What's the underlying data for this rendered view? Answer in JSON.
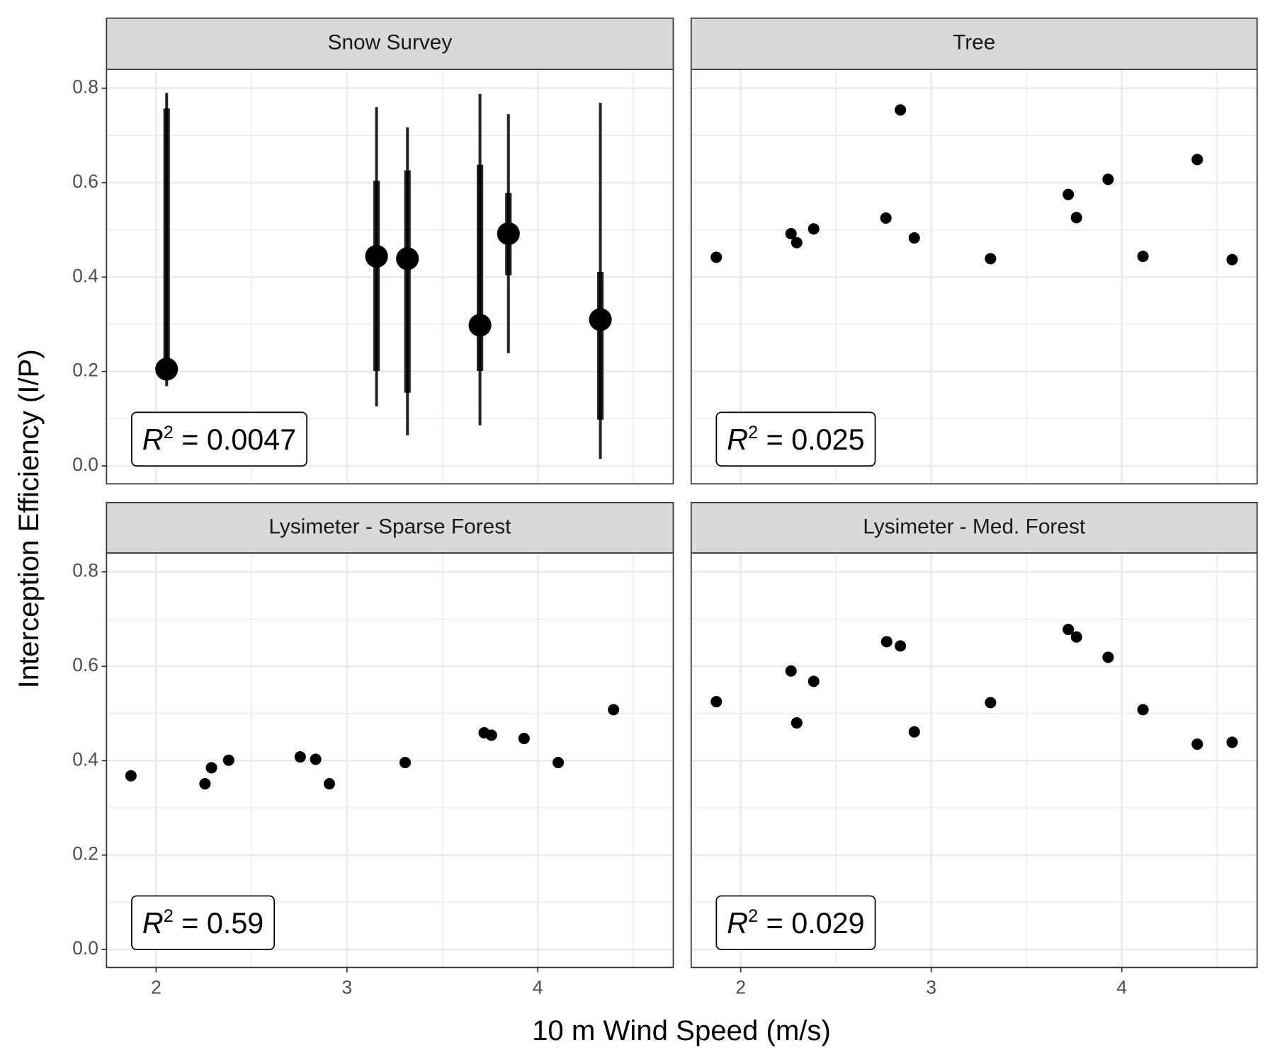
{
  "xlabel": "10 m Wind Speed (m/s)",
  "ylabel": "Interception Efficiency (I/P)",
  "chart_data": [
    {
      "type": "pointrange",
      "title": "Snow Survey",
      "color": "#000000",
      "x": [
        2.055,
        3.155,
        3.317,
        3.697,
        3.846,
        4.328
      ],
      "values": [
        0.205,
        0.444,
        0.439,
        0.298,
        0.492,
        0.31
      ],
      "inner_low": [
        0.19,
        0.201,
        0.155,
        0.201,
        0.404,
        0.098
      ],
      "inner_high": [
        0.757,
        0.604,
        0.626,
        0.638,
        0.578,
        0.411
      ],
      "outer_low": [
        0.169,
        0.126,
        0.065,
        0.086,
        0.239,
        0.015
      ],
      "outer_high": [
        0.79,
        0.76,
        0.717,
        0.788,
        0.745,
        0.769
      ],
      "xlim": [
        1.74,
        4.71
      ],
      "ylim": [
        -0.038,
        0.84
      ],
      "xticks": [
        2,
        3,
        4
      ],
      "yticks": [
        {
          "value": 0,
          "label": "0.0"
        },
        0.2,
        0.4,
        0.6,
        0.8
      ],
      "minor_xticks": [
        2.5,
        3.5,
        4.5
      ],
      "minor_yticks": [
        0.1,
        0.3,
        0.5,
        0.7
      ],
      "grid": true,
      "annotation": [
        "R",
        "2",
        " = 0.0047"
      ]
    },
    {
      "type": "scatter",
      "title": "Tree",
      "color": "#000000",
      "x": [
        1.872,
        2.264,
        2.294,
        2.383,
        2.762,
        2.838,
        2.911,
        3.311,
        3.719,
        3.762,
        3.928,
        4.111,
        4.396,
        4.579
      ],
      "values": [
        0.442,
        0.492,
        0.473,
        0.502,
        0.525,
        0.754,
        0.483,
        0.439,
        0.575,
        0.526,
        0.607,
        0.444,
        0.649,
        0.437
      ],
      "xlim": [
        1.74,
        4.71
      ],
      "ylim": [
        -0.038,
        0.84
      ],
      "xticks": [
        2,
        3,
        4
      ],
      "yticks": [
        {
          "value": 0,
          "label": "0.0"
        },
        0.2,
        0.4,
        0.6,
        0.8
      ],
      "minor_xticks": [
        2.5,
        3.5,
        4.5
      ],
      "minor_yticks": [
        0.1,
        0.3,
        0.5,
        0.7
      ],
      "grid": true,
      "annotation": [
        "R",
        "2",
        " = 0.025"
      ]
    },
    {
      "type": "scatter",
      "title": "Lysimeter - Sparse Forest",
      "color": "#000000",
      "x": [
        1.868,
        2.256,
        2.29,
        2.38,
        2.755,
        2.836,
        2.908,
        3.305,
        3.719,
        3.757,
        3.928,
        4.107,
        4.397
      ],
      "values": [
        0.368,
        0.351,
        0.385,
        0.401,
        0.408,
        0.403,
        0.351,
        0.396,
        0.459,
        0.454,
        0.447,
        0.396,
        0.508
      ],
      "xlim": [
        1.74,
        4.71
      ],
      "ylim": [
        -0.038,
        0.84
      ],
      "xticks": [
        2,
        3,
        4
      ],
      "yticks": [
        {
          "value": 0,
          "label": "0.0"
        },
        0.2,
        0.4,
        0.6,
        0.8
      ],
      "minor_xticks": [
        2.5,
        3.5,
        4.5
      ],
      "minor_yticks": [
        0.1,
        0.3,
        0.5,
        0.7
      ],
      "grid": true,
      "annotation": [
        "R",
        "2",
        " = 0.59"
      ]
    },
    {
      "type": "scatter",
      "title": "Lysimeter - Med. Forest",
      "color": "#000000",
      "x": [
        1.872,
        2.264,
        2.294,
        2.383,
        2.766,
        2.838,
        2.911,
        3.311,
        3.719,
        3.762,
        3.928,
        4.111,
        4.396,
        4.579
      ],
      "values": [
        0.525,
        0.59,
        0.48,
        0.568,
        0.652,
        0.643,
        0.461,
        0.523,
        0.678,
        0.662,
        0.619,
        0.508,
        0.435,
        0.439
      ],
      "xlim": [
        1.74,
        4.71
      ],
      "ylim": [
        -0.038,
        0.84
      ],
      "xticks": [
        2,
        3,
        4
      ],
      "yticks": [
        {
          "value": 0,
          "label": "0.0"
        },
        0.2,
        0.4,
        0.6,
        0.8
      ],
      "minor_xticks": [
        2.5,
        3.5,
        4.5
      ],
      "minor_yticks": [
        0.1,
        0.3,
        0.5,
        0.7
      ],
      "grid": true,
      "annotation": [
        "R",
        "2",
        " = 0.029"
      ]
    }
  ]
}
